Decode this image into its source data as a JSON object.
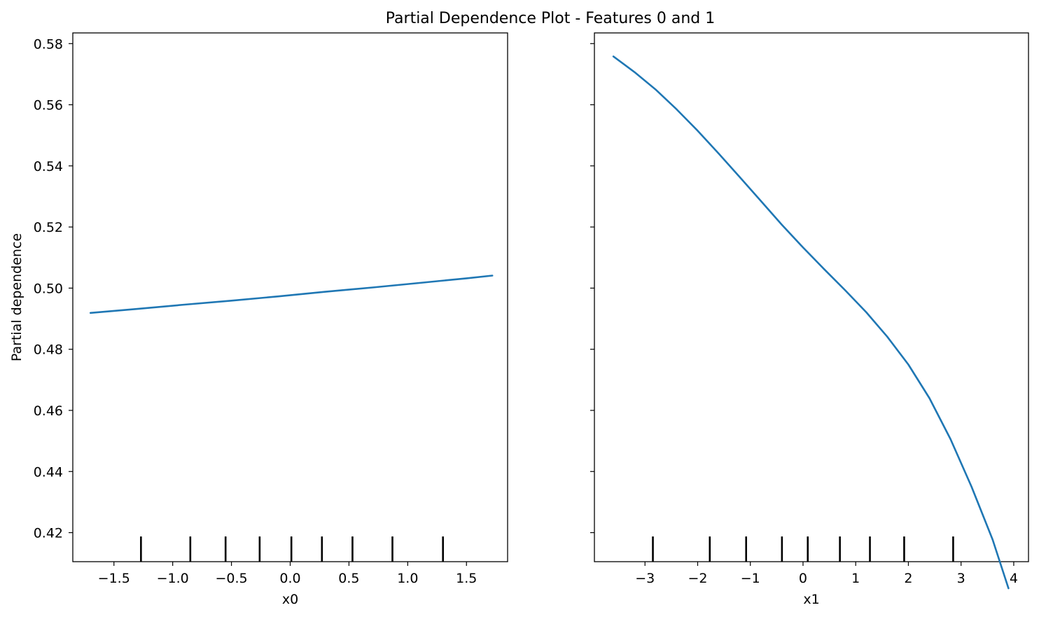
{
  "title": "Partial Dependence Plot - Features 0 and 1",
  "colors": {
    "line": "#1f77b4",
    "axes": "#000000",
    "rug": "#000000"
  },
  "chart_data": [
    {
      "type": "line",
      "xlabel": "x0",
      "ylabel": "Partial dependence",
      "xlim": [
        -1.85,
        1.85
      ],
      "ylim": [
        0.4105,
        0.5835
      ],
      "xticks": [
        -1.5,
        -1.0,
        -0.5,
        0.0,
        0.5,
        1.0,
        1.5
      ],
      "xtick_labels": [
        "−1.5",
        "−1.0",
        "−0.5",
        "0.0",
        "0.5",
        "1.0",
        "1.5"
      ],
      "yticks": [
        0.42,
        0.44,
        0.46,
        0.48,
        0.5,
        0.52,
        0.54,
        0.56,
        0.58
      ],
      "ytick_labels": [
        "0.42",
        "0.44",
        "0.46",
        "0.48",
        "0.50",
        "0.52",
        "0.54",
        "0.56",
        "0.58"
      ],
      "show_ytick_labels": true,
      "series": [
        {
          "x": [
            -1.7,
            -1.3,
            -0.9,
            -0.5,
            -0.1,
            0.3,
            0.7,
            1.1,
            1.5,
            1.72
          ],
          "y": [
            0.4919,
            0.4932,
            0.4946,
            0.4959,
            0.4973,
            0.4988,
            0.5002,
            0.5017,
            0.5032,
            0.5041
          ]
        }
      ],
      "rug": [
        -1.27,
        -0.85,
        -0.55,
        -0.26,
        0.01,
        0.27,
        0.53,
        0.87,
        1.3
      ]
    },
    {
      "type": "line",
      "xlabel": "x1",
      "ylabel": "",
      "xlim": [
        -3.96,
        4.28
      ],
      "ylim": [
        0.4105,
        0.5835
      ],
      "xticks": [
        -3,
        -2,
        -1,
        0,
        1,
        2,
        3,
        4
      ],
      "xtick_labels": [
        "−3",
        "−2",
        "−1",
        "0",
        "1",
        "2",
        "3",
        "4"
      ],
      "yticks": [
        0.42,
        0.44,
        0.46,
        0.48,
        0.5,
        0.52,
        0.54,
        0.56,
        0.58
      ],
      "ytick_labels": [],
      "show_ytick_labels": false,
      "series": [
        {
          "x": [
            -3.6,
            -3.2,
            -2.8,
            -2.4,
            -2.0,
            -1.6,
            -1.2,
            -0.8,
            -0.4,
            0.0,
            0.4,
            0.8,
            1.2,
            1.6,
            2.0,
            2.4,
            2.8,
            3.2,
            3.6,
            3.9
          ],
          "y": [
            0.5758,
            0.5707,
            0.565,
            0.5585,
            0.5515,
            0.544,
            0.5363,
            0.5285,
            0.5207,
            0.5133,
            0.5062,
            0.4993,
            0.4921,
            0.4841,
            0.475,
            0.464,
            0.4506,
            0.435,
            0.4177,
            0.4018
          ]
        }
      ],
      "rug": [
        -2.85,
        -1.77,
        -1.08,
        -0.4,
        0.09,
        0.7,
        1.27,
        1.92,
        2.85
      ]
    }
  ]
}
